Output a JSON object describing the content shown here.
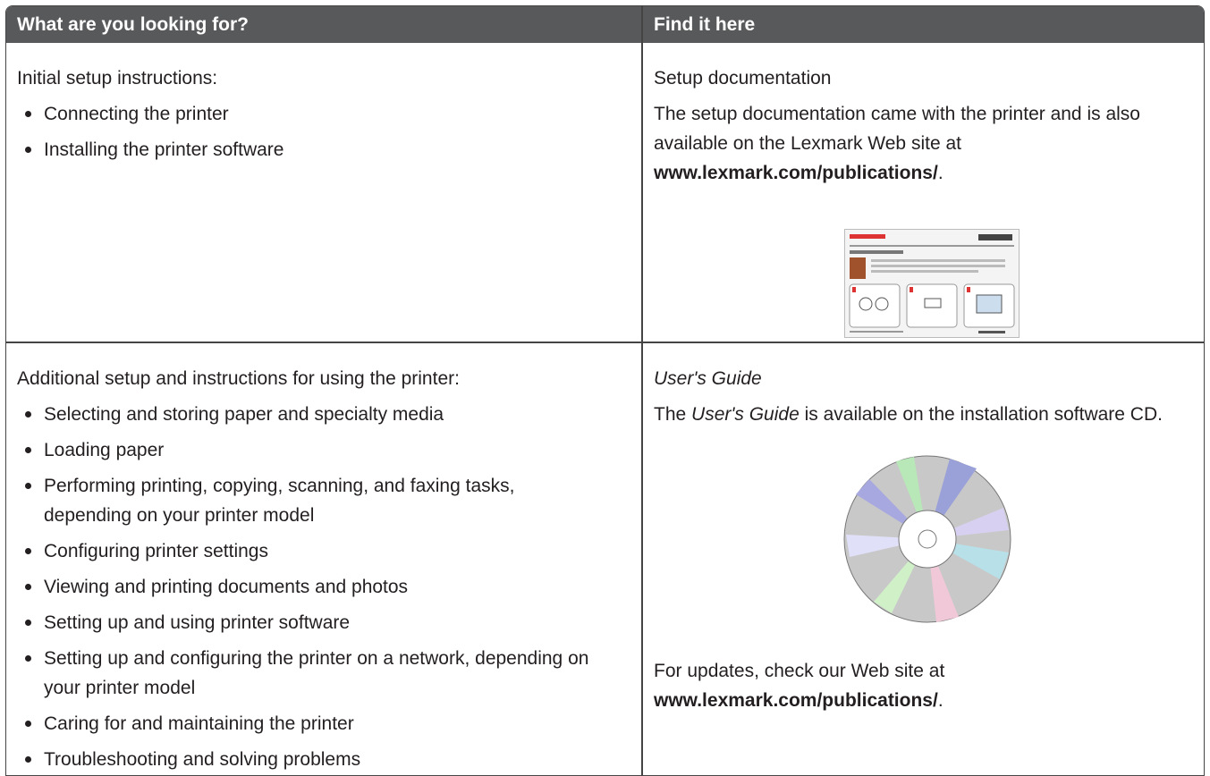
{
  "table": {
    "headers": [
      "What are you looking for?",
      "Find it here"
    ],
    "rows": [
      {
        "topic": "Initial setup instructions:",
        "items": [
          "Connecting the printer",
          "Installing the printer software"
        ],
        "source_title": "Setup documentation",
        "source_text": [
          "The setup documentation came with the printer and is also available on the Lexmark Web site at ",
          "www.lexmark.com/publications/",
          "."
        ]
      },
      {
        "topic": "Additional setup and instructions for using the printer:",
        "items": [
          "Selecting and storing paper and specialty media",
          "Loading paper",
          "Performing printing, copying, scanning, and faxing tasks, depending on your printer model",
          "Configuring printer settings",
          "Viewing and printing documents and photos",
          "Setting up and using printer software",
          "Setting up and configuring the printer on a network, depending on your printer model",
          "Caring for and maintaining the printer",
          "Troubleshooting and solving problems"
        ],
        "source_title": "User's Guide",
        "source_text": [
          "The ",
          "User's Guide",
          " is available on the installation software CD."
        ],
        "source_note": [
          "For updates, check our Web site at ",
          "www.lexmark.com/publications/",
          "."
        ]
      }
    ]
  }
}
